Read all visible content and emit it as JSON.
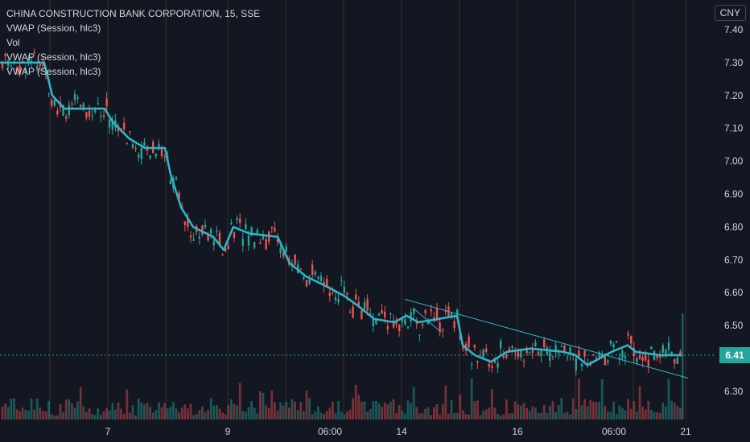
{
  "legend": {
    "title": "CHINA CONSTRUCTION BANK CORPORATION, 15, SSE",
    "lines": [
      "VWAP (Session, hlc3)",
      "Vol",
      "VWAP (Session, hlc3)",
      "VWAP (Session, hlc3)"
    ]
  },
  "currency": "CNY",
  "last_price": "6.41",
  "colors": {
    "background": "#131722",
    "up": "#26a69a",
    "down": "#ef5350",
    "vwap": "#2fb5c9",
    "trendline": "#2fb5c9",
    "session_line": "#5d4037",
    "axis_text": "#d1d4dc"
  },
  "chart_data": {
    "type": "candlestick",
    "ylim": [
      6.22,
      7.44
    ],
    "y_ticks": [
      "7.40",
      "7.30",
      "7.20",
      "7.10",
      "7.00",
      "6.90",
      "6.80",
      "6.70",
      "6.60",
      "6.50",
      "6.30"
    ],
    "x_ticks": [
      "7",
      "9",
      "06:00",
      "14",
      "16",
      "06:00",
      "21"
    ],
    "vwap_points": [
      [
        0,
        7.3
      ],
      [
        55,
        7.3
      ],
      [
        65,
        7.2
      ],
      [
        80,
        7.16
      ],
      [
        130,
        7.16
      ],
      [
        140,
        7.12
      ],
      [
        160,
        7.07
      ],
      [
        180,
        7.04
      ],
      [
        205,
        7.04
      ],
      [
        212,
        6.96
      ],
      [
        225,
        6.86
      ],
      [
        240,
        6.8
      ],
      [
        265,
        6.77
      ],
      [
        278,
        6.73
      ],
      [
        290,
        6.8
      ],
      [
        310,
        6.78
      ],
      [
        345,
        6.77
      ],
      [
        360,
        6.69
      ],
      [
        380,
        6.65
      ],
      [
        405,
        6.62
      ],
      [
        428,
        6.59
      ],
      [
        445,
        6.56
      ],
      [
        465,
        6.52
      ],
      [
        490,
        6.51
      ],
      [
        505,
        6.53
      ],
      [
        520,
        6.51
      ],
      [
        545,
        6.52
      ],
      [
        568,
        6.53
      ],
      [
        575,
        6.44
      ],
      [
        590,
        6.41
      ],
      [
        610,
        6.39
      ],
      [
        630,
        6.42
      ],
      [
        660,
        6.43
      ],
      [
        700,
        6.42
      ],
      [
        715,
        6.41
      ],
      [
        730,
        6.38
      ],
      [
        760,
        6.42
      ],
      [
        780,
        6.44
      ],
      [
        790,
        6.42
      ],
      [
        820,
        6.41
      ],
      [
        848,
        6.41
      ]
    ],
    "trendlines": [
      [
        [
          503,
          6.58
        ],
        [
          855,
          6.34
        ]
      ],
      [
        [
          515,
          6.55
        ],
        [
          548,
          6.48
        ]
      ]
    ],
    "last_price": 6.41
  }
}
